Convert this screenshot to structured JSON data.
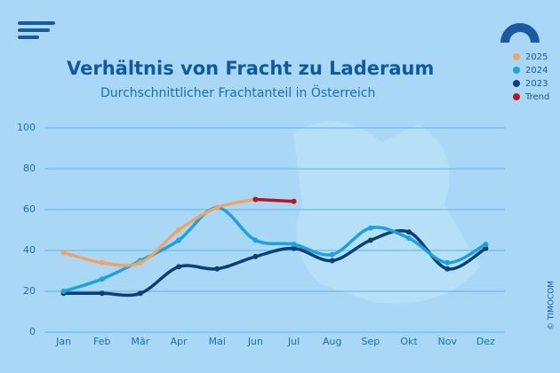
{
  "chart_data": {
    "type": "line",
    "title": "Verhältnis von Fracht zu Laderaum",
    "subtitle": "Durchschnittlicher Frachtanteil in Österreich",
    "categories": [
      "Jan",
      "Feb",
      "Mär",
      "Apr",
      "Mai",
      "Jun",
      "Jul",
      "Aug",
      "Sep",
      "Okt",
      "Nov",
      "Dez"
    ],
    "series": [
      {
        "name": "2025",
        "color": "#f4a261",
        "values": [
          39,
          34,
          34,
          50,
          61,
          65,
          null,
          null,
          null,
          null,
          null,
          null
        ]
      },
      {
        "name": "2024",
        "color": "#1ba3e0",
        "values": [
          20,
          26,
          35,
          45,
          61,
          45,
          43,
          38,
          51,
          46,
          34,
          43
        ]
      },
      {
        "name": "2023",
        "color": "#0c3f74",
        "values": [
          19,
          19,
          19,
          32,
          31,
          37,
          41,
          35,
          45,
          49,
          31,
          41
        ]
      },
      {
        "name": "Trend",
        "color": "#c1121f",
        "values": [
          null,
          null,
          null,
          null,
          null,
          65,
          64,
          null,
          null,
          null,
          null,
          null
        ]
      }
    ],
    "ylim": [
      0,
      100
    ],
    "yticks": [
      0,
      20,
      40,
      60,
      80,
      100
    ],
    "grid": true,
    "legend": "top-right"
  },
  "copyright": "© TIMOCOM"
}
